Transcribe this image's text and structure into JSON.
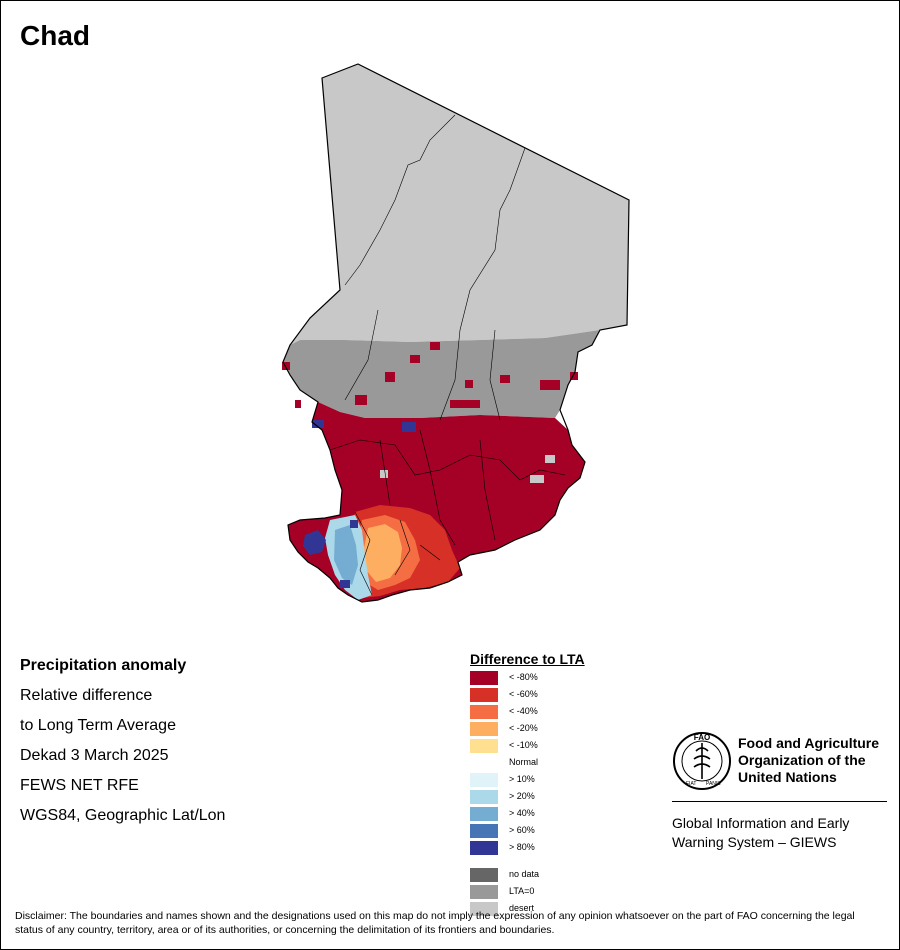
{
  "title": "Chad",
  "info": {
    "heading": "Precipitation anomaly",
    "line1": "Relative difference",
    "line2": "to Long Term Average",
    "period": "Dekad 3 March 2025",
    "source": "FEWS NET RFE",
    "projection": "WGS84, Geographic Lat/Lon"
  },
  "legend": {
    "title": "Difference to LTA",
    "items": [
      {
        "label": "< -80%",
        "color": "#A50026"
      },
      {
        "label": "< -60%",
        "color": "#D73027"
      },
      {
        "label": "< -40%",
        "color": "#F46D43"
      },
      {
        "label": "< -20%",
        "color": "#FDAE61"
      },
      {
        "label": "< -10%",
        "color": "#FEE090"
      },
      {
        "label": "Normal",
        "color": "#FFFFFF"
      },
      {
        "label": "> 10%",
        "color": "#E0F3F8"
      },
      {
        "label": "> 20%",
        "color": "#ABD9E9"
      },
      {
        "label": "> 40%",
        "color": "#74ADD1"
      },
      {
        "label": "> 60%",
        "color": "#4575B4"
      },
      {
        "label": "> 80%",
        "color": "#313695"
      },
      {
        "label": "no data",
        "color": "#666666"
      },
      {
        "label": "LTA=0",
        "color": "#999999"
      },
      {
        "label": "desert",
        "color": "#C8C8C8"
      }
    ]
  },
  "fao": {
    "org_line1": "Food and Agriculture",
    "org_line2": "Organization of the",
    "org_line3": "United Nations",
    "giews_line1": "Global Information and Early",
    "giews_line2": "Warning System – GIEWS",
    "logo_text": "FAO",
    "logo_motto_left": "FIAT",
    "logo_motto_right": "PANIS"
  },
  "disclaimer": "Disclaimer: The boundaries and names shown and the designations used on this map do not imply the expression of any opinion whatsoever on the part of FAO concerning the legal status of any country, territory, area or of its authorities, or concerning the delimitation of its frontiers and boundaries."
}
